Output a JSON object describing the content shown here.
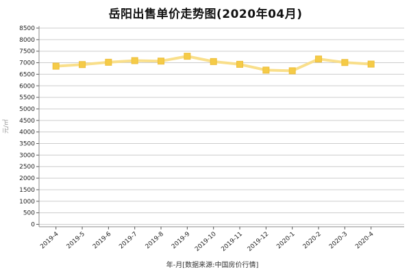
{
  "chart_data": {
    "type": "line",
    "title": "岳阳出售单价走势图(2020年04月)",
    "categories": [
      "2019-4",
      "2019-5",
      "2019-6",
      "2019-7",
      "2019-8",
      "2019-9",
      "2019-10",
      "2019-11",
      "2019-12",
      "2020-1",
      "2020-2",
      "2020-3",
      "2020-4"
    ],
    "series": [
      {
        "name": "出售单价",
        "values": [
          6850,
          6920,
          7020,
          7090,
          7070,
          7280,
          7050,
          6930,
          6680,
          6650,
          7160,
          7010,
          6940
        ]
      }
    ],
    "xlabel": "年-月[数据来源:中国房价行情]",
    "ylabel": "元/㎡",
    "ylim": [
      0,
      8500
    ],
    "ytick_step": 500,
    "grid": true,
    "legend": "none",
    "colors": {
      "line": "#F9DD85",
      "marker": "#F5CB47",
      "marker_border": "#EDBE3B",
      "grid": "#CCCCCC",
      "axis": "#888888",
      "tick_text": "#222222",
      "muted_text": "#999999",
      "background": "#FFFFFF"
    }
  }
}
